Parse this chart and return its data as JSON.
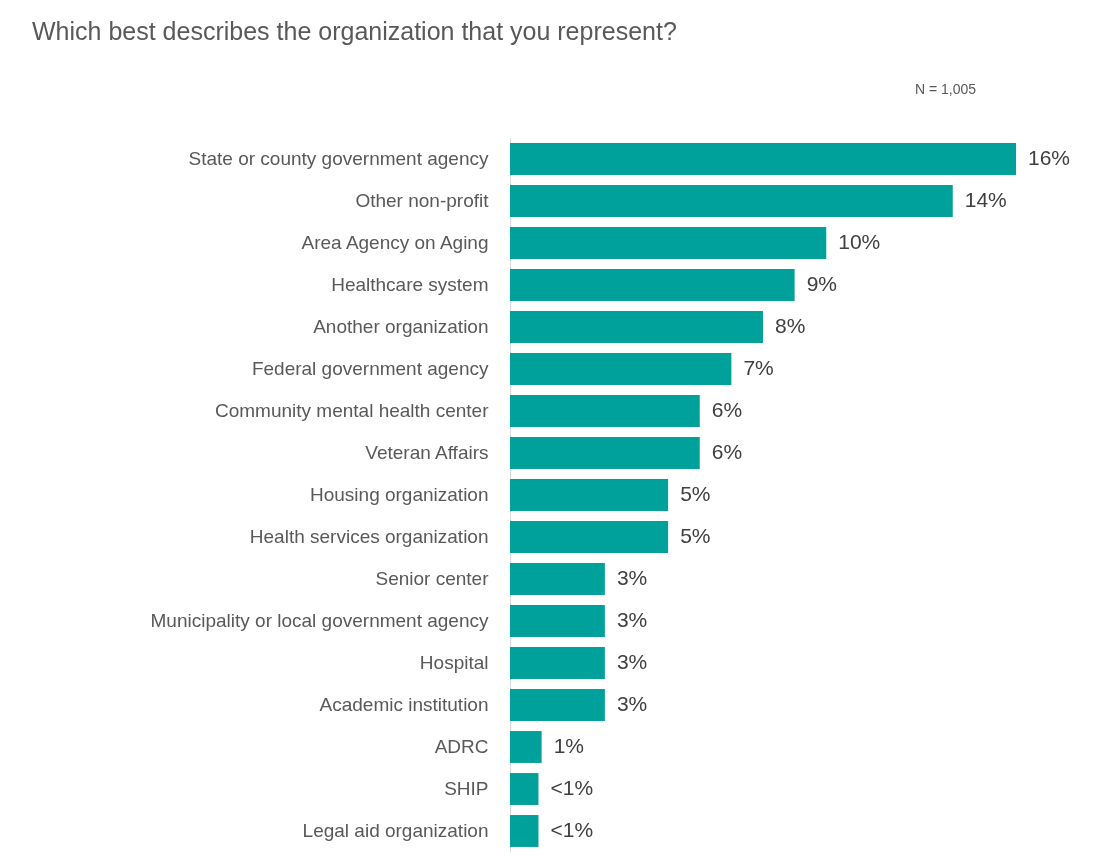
{
  "chart_data": {
    "type": "bar",
    "orientation": "horizontal",
    "title": "Which best describes the organization that you represent?",
    "annotations": [
      "N = 1,005"
    ],
    "categories": [
      "State or county government agency",
      "Other non-profit",
      "Area Agency on Aging",
      "Healthcare system",
      "Another organization",
      "Federal government agency",
      "Community mental health center ",
      "Veteran Affairs",
      "Housing organization",
      "Health services organization",
      "Senior center",
      "Municipality or local government agency",
      "Hospital",
      "Academic institution",
      "ADRC",
      "SHIP",
      "Legal aid organization"
    ],
    "values": [
      16,
      14,
      10,
      9,
      8,
      7,
      6,
      6,
      5,
      5,
      3,
      3,
      3,
      3,
      1,
      0.9,
      0.9
    ],
    "value_labels": [
      "16%",
      "14%",
      "10%",
      "9%",
      "8%",
      "7%",
      "6%",
      "6%",
      "5%",
      "5%",
      "3%",
      "3%",
      "3%",
      "3%",
      "1%",
      "<1%",
      "<1%"
    ],
    "color": "#00a19a",
    "grid": false
  }
}
